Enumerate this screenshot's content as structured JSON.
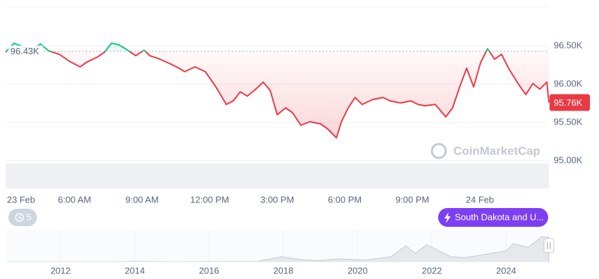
{
  "chart_data": [
    {
      "type": "line",
      "x": [
        2.94,
        3.31,
        3.77,
        4.24,
        4.48,
        4.86,
        5.32,
        5.78,
        6.25,
        6.56,
        7.02,
        7.33,
        7.64,
        7.95,
        8.26,
        8.72,
        9.09,
        9.34,
        9.8,
        10.27,
        10.58,
        10.89,
        11.35,
        11.81,
        12.28,
        12.74,
        13.05,
        13.36,
        13.67,
        13.98,
        14.38,
        14.69,
        15.0,
        15.37,
        15.68,
        16.05,
        16.45,
        16.92,
        17.23,
        17.63,
        17.85,
        18.15,
        18.46,
        18.77,
        19.24,
        19.7,
        20.01,
        20.47,
        20.94,
        21.25,
        21.56,
        22.02,
        22.48,
        22.79,
        23.1,
        23.41,
        23.72,
        24.03,
        24.34,
        24.65,
        24.96,
        25.27,
        25.73,
        26.04,
        26.35,
        26.66,
        26.97,
        27.06
      ],
      "values": [
        96420,
        96535,
        96482,
        96464,
        96527,
        96436,
        96391,
        96300,
        96227,
        96291,
        96355,
        96418,
        96536,
        96518,
        96464,
        96373,
        96445,
        96373,
        96327,
        96264,
        96218,
        96164,
        96227,
        96164,
        95964,
        95736,
        95782,
        95900,
        95845,
        95918,
        96027,
        95918,
        95600,
        95691,
        95627,
        95464,
        95509,
        95482,
        95418,
        95300,
        95509,
        95691,
        95827,
        95736,
        95800,
        95827,
        95782,
        95755,
        95782,
        95736,
        95718,
        95736,
        95573,
        95691,
        95964,
        96209,
        95964,
        96282,
        96464,
        96327,
        96391,
        96209,
        95991,
        95864,
        96009,
        95936,
        96027,
        95760
      ],
      "value_labels": [
        null,
        null,
        null,
        null,
        null,
        null,
        null,
        null,
        null,
        null,
        null,
        null,
        null,
        null,
        null,
        null,
        null,
        null,
        null,
        null,
        null,
        null,
        null,
        null,
        null,
        null,
        null,
        null,
        null,
        null,
        null,
        null,
        null,
        null,
        null,
        null,
        null,
        null,
        null,
        null,
        null,
        null,
        null,
        null,
        null,
        null,
        null,
        null,
        null,
        null,
        null,
        null,
        null,
        null,
        null,
        null,
        null,
        null,
        null,
        null,
        null,
        null,
        null,
        null,
        null,
        null,
        null,
        "95.76K"
      ],
      "baseline": {
        "value": 96430,
        "label": "96.43K"
      },
      "up_color": "#16c784",
      "down_color": "#ea3943",
      "xlim": [
        2.94,
        27.06
      ],
      "xticks": [
        {
          "value": 0,
          "label": "23 Feb"
        },
        {
          "value": 6,
          "label": "6:00 AM"
        },
        {
          "value": 9,
          "label": "9:00 AM"
        },
        {
          "value": 12,
          "label": "12:00 PM"
        },
        {
          "value": 15,
          "label": "3:00 PM"
        },
        {
          "value": 18,
          "label": "6:00 PM"
        },
        {
          "value": 21,
          "label": "9:00 PM"
        },
        {
          "value": 24,
          "label": "24 Feb"
        }
      ],
      "ylim": [
        94645,
        97010
      ],
      "yticks": [
        {
          "value": 95000,
          "label": "95.00K"
        },
        {
          "value": 95500,
          "label": "95.50K"
        },
        {
          "value": 96000,
          "label": "96.00K"
        },
        {
          "value": 96500,
          "label": "96.50K"
        }
      ],
      "grid": true
    },
    {
      "type": "area",
      "x": [
        2010.52,
        2012.0,
        2013.5,
        2013.92,
        2015.0,
        2016.5,
        2017.3,
        2017.96,
        2018.5,
        2018.95,
        2019.5,
        2020.2,
        2020.9,
        2021.3,
        2021.55,
        2021.86,
        2022.5,
        2022.9,
        2023.5,
        2024.0,
        2024.2,
        2024.6,
        2024.95,
        2025.15
      ],
      "values": [
        0,
        5,
        100,
        1100,
        250,
        650,
        1200,
        19000,
        7500,
        3500,
        11000,
        6000,
        19000,
        63000,
        33000,
        67000,
        20000,
        16000,
        30000,
        43000,
        71000,
        57000,
        98000,
        96000
      ],
      "color": "#e6e8ec",
      "line_color": "#c4c9d2",
      "xlim": [
        2010.52,
        2025.15
      ],
      "xticks": [
        2012,
        2014,
        2016,
        2018,
        2020,
        2022,
        2024
      ],
      "ylim": [
        0,
        110000
      ],
      "grid": true
    }
  ],
  "watermark": "CoinMarketCap",
  "controls": {
    "history_count": "5",
    "event": "South Dakota and U..."
  }
}
